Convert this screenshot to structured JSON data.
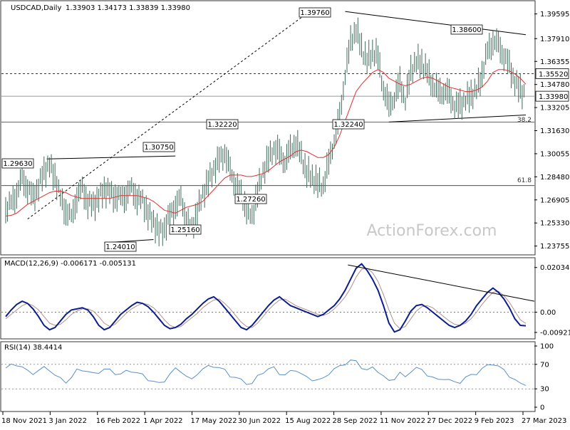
{
  "header": {
    "symbol": "USDCAD,Daily",
    "ohlc": "1.33903 1.34173 1.33839 1.33980"
  },
  "watermark": "ActionForex.com",
  "colors": {
    "bars": "#3f6a5a",
    "ma": "#e03030",
    "macd_line": "#0b1e8c",
    "macd_signal": "#b09090",
    "rsi": "#5a8fc8",
    "panel_border": "#333333"
  },
  "chart_data": [
    {
      "type": "candlestick",
      "panel": "price",
      "x_ticks": [
        "18 Nov 2021",
        "3 Jan 2022",
        "16 Feb 2022",
        "1 Apr 2022",
        "17 May 2022",
        "30 Jun 2022",
        "15 Aug 2022",
        "28 Sep 2022",
        "11 Nov 2022",
        "27 Dec 2022",
        "9 Feb 2023",
        "27 Mar 2023"
      ],
      "y_ticks": [
        "1.39595",
        "1.37910",
        "1.36355",
        "1.34780",
        "1.33205",
        "1.31630",
        "1.30055",
        "1.28480",
        "1.26905",
        "1.25330",
        "1.23755"
      ],
      "ylim": [
        1.2325,
        1.404
      ],
      "current_price": "1.33980",
      "level_tag": "1.35520",
      "swing_labels": [
        {
          "text": "1.39760",
          "price": 1.3976
        },
        {
          "text": "1.38600",
          "price": 1.386
        },
        {
          "text": "1.32220",
          "price": 1.3222
        },
        {
          "text": "1.30750",
          "price": 1.3075
        },
        {
          "text": "1.32240",
          "price": 1.3224
        },
        {
          "text": "1.29630",
          "price": 1.2963
        },
        {
          "text": "1.27260",
          "price": 1.2726
        },
        {
          "text": "1.25160",
          "price": 1.2516
        },
        {
          "text": "1.24010",
          "price": 1.2401
        }
      ],
      "fib_labels": [
        {
          "text": "38.2",
          "price": 1.3215
        },
        {
          "text": "61.8",
          "price": 1.2802
        }
      ],
      "series": [
        {
          "name": "",
          "style": "bars",
          "close": [
            1.262,
            1.2665,
            1.274,
            1.283,
            1.278,
            1.27,
            1.279,
            1.288,
            1.293,
            1.285,
            1.27,
            1.262,
            1.256,
            1.272,
            1.276,
            1.268,
            1.265,
            1.271,
            1.276,
            1.274,
            1.272,
            1.27,
            1.273,
            1.276,
            1.271,
            1.268,
            1.26,
            1.254,
            1.247,
            1.25,
            1.258,
            1.266,
            1.269,
            1.256,
            1.248,
            1.262,
            1.272,
            1.282,
            1.29,
            1.296,
            1.302,
            1.288,
            1.28,
            1.272,
            1.264,
            1.256,
            1.275,
            1.288,
            1.297,
            1.305,
            1.3,
            1.296,
            1.302,
            1.309,
            1.298,
            1.288,
            1.284,
            1.28,
            1.279,
            1.294,
            1.311,
            1.324,
            1.356,
            1.376,
            1.386,
            1.372,
            1.364,
            1.37,
            1.366,
            1.345,
            1.332,
            1.34,
            1.348,
            1.338,
            1.356,
            1.364,
            1.362,
            1.356,
            1.348,
            1.342,
            1.344,
            1.34,
            1.334,
            1.333,
            1.338,
            1.34,
            1.344,
            1.355,
            1.37,
            1.378,
            1.374,
            1.368,
            1.36,
            1.35,
            1.344,
            1.3398
          ]
        },
        {
          "name": "",
          "style": "ma",
          "values": [
            1.258,
            1.2585,
            1.26,
            1.263,
            1.266,
            1.268,
            1.27,
            1.272,
            1.274,
            1.275,
            1.275,
            1.274,
            1.272,
            1.271,
            1.27,
            1.27,
            1.27,
            1.27,
            1.27,
            1.27,
            1.271,
            1.272,
            1.272,
            1.272,
            1.272,
            1.271,
            1.27,
            1.268,
            1.265,
            1.262,
            1.261,
            1.26,
            1.262,
            1.264,
            1.265,
            1.266,
            1.268,
            1.272,
            1.276,
            1.28,
            1.284,
            1.286,
            1.286,
            1.286,
            1.285,
            1.285,
            1.286,
            1.287,
            1.289,
            1.292,
            1.295,
            1.297,
            1.299,
            1.302,
            1.303,
            1.302,
            1.3,
            1.298,
            1.298,
            1.3,
            1.305,
            1.313,
            1.323,
            1.333,
            1.343,
            1.348,
            1.352,
            1.356,
            1.358,
            1.356,
            1.352,
            1.35,
            1.348,
            1.347,
            1.348,
            1.35,
            1.352,
            1.353,
            1.352,
            1.35,
            1.348,
            1.346,
            1.345,
            1.344,
            1.343,
            1.343,
            1.344,
            1.346,
            1.35,
            1.356,
            1.358,
            1.358,
            1.357,
            1.355,
            1.352,
            1.348
          ]
        }
      ]
    },
    {
      "type": "line",
      "panel": "macd",
      "title": "MACD(12,26,9) -0.006171 -0.005131",
      "y_ticks": [
        "0.020349",
        "0.00",
        "-0.009215"
      ],
      "ylim": [
        -0.0115,
        0.0235
      ],
      "series": [
        {
          "name": "",
          "values": [
            -0.002,
            0.001,
            0.0035,
            0.005,
            0.004,
            0.0015,
            -0.002,
            -0.006,
            -0.008,
            -0.007,
            -0.004,
            -0.001,
            0.001,
            0.0015,
            0.002,
            0.001,
            -0.002,
            -0.006,
            -0.008,
            -0.007,
            -0.004,
            -0.001,
            0.001,
            0.003,
            0.0045,
            0.004,
            0.0025,
            0.0,
            -0.003,
            -0.006,
            -0.0075,
            -0.007,
            -0.0055,
            -0.003,
            -0.001,
            0.0015,
            0.004,
            0.006,
            0.007,
            0.005,
            0.002,
            -0.001,
            -0.004,
            -0.007,
            -0.008,
            -0.006,
            -0.003,
            0.0,
            0.003,
            0.0055,
            0.007,
            0.005,
            0.003,
            0.002,
            0.001,
            0.0,
            -0.001,
            -0.002,
            -0.001,
            0.001,
            0.003,
            0.006,
            0.01,
            0.015,
            0.02,
            0.022,
            0.019,
            0.015,
            0.01,
            0.003,
            -0.005,
            -0.009,
            -0.008,
            -0.004,
            0.0005,
            0.003,
            0.0035,
            0.002,
            0.0,
            -0.002,
            -0.004,
            -0.006,
            -0.007,
            -0.006,
            -0.004,
            -0.001,
            0.003,
            0.006,
            0.009,
            0.011,
            0.009,
            0.006,
            0.002,
            -0.003,
            -0.006,
            -0.0062
          ]
        },
        {
          "name": "",
          "values": [
            -0.003,
            -0.001,
            0.001,
            0.003,
            0.004,
            0.003,
            0.001,
            -0.002,
            -0.005,
            -0.006,
            -0.0055,
            -0.0035,
            -0.001,
            0.0005,
            0.0015,
            0.0015,
            0.0005,
            -0.002,
            -0.005,
            -0.0065,
            -0.0055,
            -0.003,
            -0.0005,
            0.0015,
            0.003,
            0.004,
            0.0035,
            0.002,
            -0.0005,
            -0.0035,
            -0.006,
            -0.007,
            -0.0065,
            -0.0045,
            -0.0025,
            -0.0005,
            0.002,
            0.004,
            0.0055,
            0.006,
            0.004,
            0.0015,
            -0.0015,
            -0.0045,
            -0.0065,
            -0.007,
            -0.005,
            -0.002,
            0.001,
            0.0035,
            0.0055,
            0.006,
            0.0045,
            0.003,
            0.002,
            0.001,
            0.0,
            -0.001,
            -0.0015,
            -0.0005,
            0.0015,
            0.004,
            0.007,
            0.011,
            0.016,
            0.0195,
            0.02,
            0.018,
            0.014,
            0.008,
            0.001,
            -0.005,
            -0.0075,
            -0.0065,
            -0.003,
            0.0005,
            0.0025,
            0.003,
            0.002,
            0.0,
            -0.002,
            -0.004,
            -0.0055,
            -0.006,
            -0.005,
            -0.003,
            0.0,
            0.0035,
            0.0065,
            0.009,
            0.0095,
            0.0075,
            0.0045,
            0.0005,
            -0.0035,
            -0.0051
          ]
        }
      ]
    },
    {
      "type": "line",
      "panel": "rsi",
      "title": "RSI(14) 38.4414",
      "y_ticks": [
        "100",
        "70",
        "30",
        "0"
      ],
      "ylim": [
        0,
        100
      ],
      "series": [
        {
          "name": "",
          "values": [
            64,
            68,
            70,
            66,
            58,
            56,
            60,
            64,
            62,
            52,
            46,
            42,
            48,
            60,
            62,
            58,
            54,
            58,
            62,
            60,
            56,
            54,
            58,
            60,
            56,
            52,
            46,
            42,
            38,
            44,
            54,
            62,
            60,
            50,
            44,
            56,
            62,
            66,
            68,
            64,
            60,
            52,
            48,
            44,
            40,
            38,
            50,
            58,
            62,
            64,
            56,
            52,
            58,
            62,
            54,
            48,
            46,
            44,
            46,
            56,
            62,
            66,
            72,
            76,
            74,
            66,
            60,
            64,
            60,
            50,
            42,
            48,
            56,
            48,
            60,
            64,
            60,
            54,
            48,
            44,
            48,
            44,
            40,
            42,
            48,
            52,
            56,
            62,
            68,
            72,
            66,
            60,
            52,
            44,
            38,
            38.4
          ]
        }
      ]
    }
  ]
}
